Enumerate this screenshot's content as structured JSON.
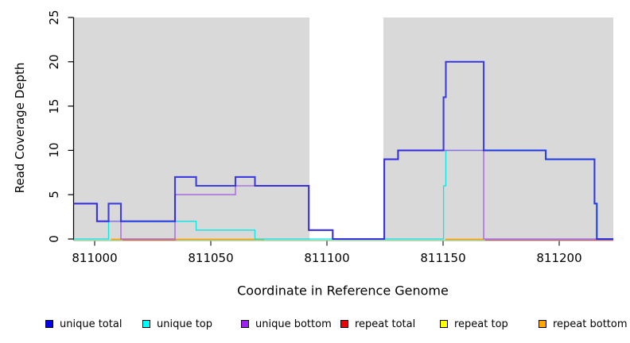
{
  "axes": {
    "y": {
      "label": "Read Coverage Depth",
      "ticks": [
        0,
        5,
        10,
        15,
        20,
        25
      ]
    },
    "x": {
      "label": "Coordinate in Reference Genome",
      "ticks": [
        811000,
        811050,
        811100,
        811150,
        811200
      ],
      "tick_labels": [
        "811000",
        "811050",
        "811100",
        "811150",
        "811200"
      ]
    }
  },
  "legend": {
    "items": [
      {
        "label": "unique total",
        "color": "#0000EE"
      },
      {
        "label": "unique top",
        "color": "#00FFFF"
      },
      {
        "label": "unique bottom",
        "color": "#A020F0"
      },
      {
        "label": "repeat total",
        "color": "#EE0000"
      },
      {
        "label": "repeat top",
        "color": "#FFFF00"
      },
      {
        "label": "repeat bottom",
        "color": "#FFA500"
      }
    ]
  },
  "chart_data": {
    "type": "line",
    "step": true,
    "title": "",
    "xlabel": "Coordinate in Reference Genome",
    "ylabel": "Read Coverage Depth",
    "xlim": [
      810991,
      811223
    ],
    "ylim": [
      0,
      25
    ],
    "x_ticks": [
      811000,
      811050,
      811100,
      811150,
      811200
    ],
    "y_ticks": [
      0,
      5,
      10,
      15,
      20,
      25
    ],
    "grid": false,
    "legend_position": "bottom",
    "shade_color": "#D9D9D9",
    "shaded_regions": [
      {
        "from": 810991,
        "to": 811092.5
      },
      {
        "from": 811124.3,
        "to": 811223.3
      }
    ],
    "series": [
      {
        "name": "unique top",
        "color": "#00E6E6",
        "opacity": 0.95,
        "width": 1.3,
        "draw": true,
        "end": 811223.3,
        "steps": [
          [
            810991,
            0
          ],
          [
            811006,
            2
          ],
          [
            811043.7,
            1
          ],
          [
            811069,
            0
          ],
          [
            811150.2,
            6
          ],
          [
            811151.2,
            10
          ],
          [
            811194.2,
            9
          ],
          [
            811215.2,
            4
          ],
          [
            811216.2,
            0
          ]
        ]
      },
      {
        "name": "unique bottom",
        "color": "#A159E0",
        "opacity": 0.8,
        "width": 1.6,
        "draw": true,
        "end": 811223.3,
        "steps": [
          [
            810991,
            4
          ],
          [
            811001,
            2
          ],
          [
            811011.3,
            0
          ],
          [
            811034.6,
            5
          ],
          [
            811060.6,
            6
          ],
          [
            811092.2,
            1
          ],
          [
            811102.5,
            0
          ],
          [
            811124.7,
            9
          ],
          [
            811130.6,
            10
          ],
          [
            811167.5,
            0
          ]
        ]
      },
      {
        "name": "unique total",
        "color": "#1C1CDF",
        "opacity": 0.82,
        "width": 2.1,
        "draw": true,
        "end": 811223.3,
        "steps": [
          [
            810991,
            4
          ],
          [
            811001,
            2
          ],
          [
            811006,
            4
          ],
          [
            811011.3,
            2
          ],
          [
            811034.6,
            7
          ],
          [
            811043.7,
            6
          ],
          [
            811060.6,
            7
          ],
          [
            811069,
            6
          ],
          [
            811092.2,
            1
          ],
          [
            811102.5,
            0
          ],
          [
            811124.7,
            9
          ],
          [
            811130.6,
            10
          ],
          [
            811150.2,
            16
          ],
          [
            811151.2,
            20
          ],
          [
            811167.5,
            10
          ],
          [
            811194.2,
            9
          ],
          [
            811215.2,
            4
          ],
          [
            811216.2,
            0
          ]
        ]
      },
      {
        "name": "repeat total",
        "color": "#EE0000",
        "opacity": 1,
        "width": 1,
        "draw": false,
        "end": 811223.3,
        "steps": [
          [
            810991,
            0
          ]
        ]
      },
      {
        "name": "repeat top",
        "color": "#FFFF00",
        "opacity": 1,
        "width": 1,
        "draw": false,
        "end": 811223.3,
        "steps": [
          [
            810991,
            0
          ]
        ]
      },
      {
        "name": "repeat bottom",
        "color": "#FFA500",
        "opacity": 1,
        "width": 1,
        "draw": false,
        "end": 811223.3,
        "steps": [
          [
            810991,
            0
          ]
        ]
      }
    ],
    "baseline_segments": [
      {
        "color": "#8FCB8F",
        "from": 810991,
        "to": 811223.3,
        "dy": 1.9,
        "width": 1.4
      },
      {
        "color": "#D6537B",
        "from": 811012,
        "to": 811035,
        "dy": 1.4,
        "width": 1.2
      },
      {
        "color": "#D6537B",
        "from": 811168,
        "to": 811223.3,
        "dy": 1.4,
        "width": 1.2
      },
      {
        "color": "#FF9F00",
        "from": 811007,
        "to": 811073,
        "dy": 0.4,
        "width": 1.6
      },
      {
        "color": "#FF9F00",
        "from": 811151,
        "to": 811167.5,
        "dy": 0.4,
        "width": 1.6
      }
    ]
  }
}
